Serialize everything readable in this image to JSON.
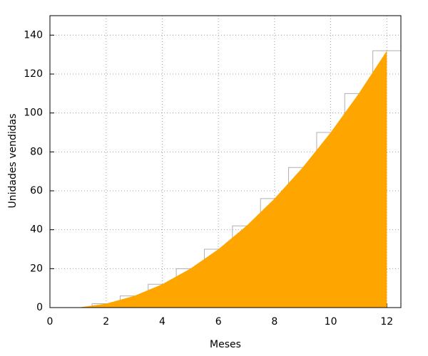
{
  "chart_data": {
    "type": "area",
    "xlabel": "Meses",
    "ylabel": "Unidades vendidas",
    "x": [
      1,
      2,
      3,
      4,
      5,
      6,
      7,
      8,
      9,
      10,
      11,
      12
    ],
    "series": [
      {
        "color": "#ffa500",
        "step_color": "#b0b0b0",
        "values": [
          0,
          2,
          6,
          12,
          20,
          30,
          42,
          56,
          72,
          90,
          110,
          132
        ]
      }
    ],
    "xlim": [
      0,
      12.5
    ],
    "ylim": [
      0,
      150
    ],
    "xticks": [
      0,
      2,
      4,
      6,
      8,
      10,
      12
    ],
    "yticks": [
      0,
      20,
      40,
      60,
      80,
      100,
      120,
      140
    ],
    "grid": true
  }
}
